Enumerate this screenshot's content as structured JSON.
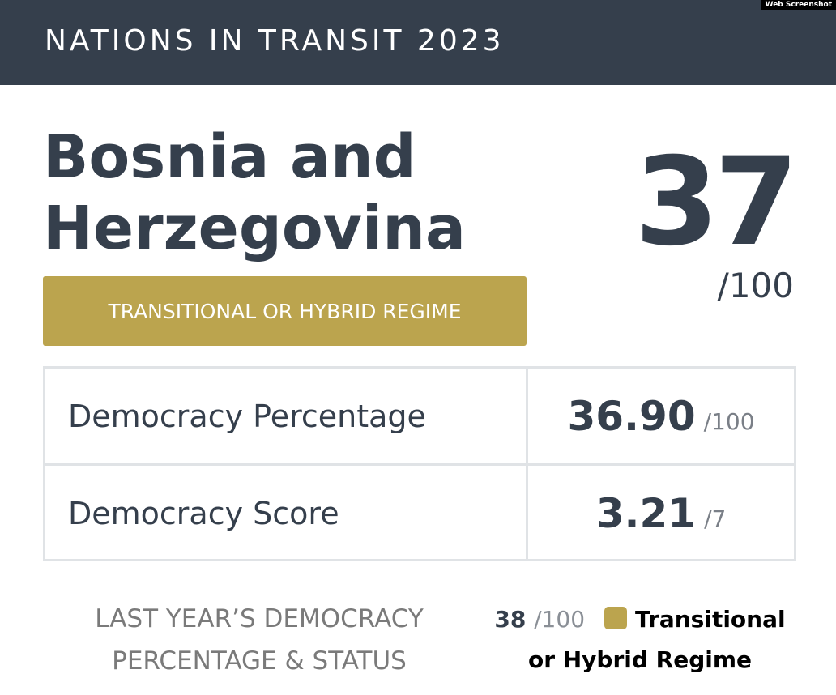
{
  "badge": "Web Screenshot",
  "header": {
    "title": "NATIONS IN TRANSIT 2023"
  },
  "country": {
    "name": "Bosnia and Herzegovina",
    "score": "37",
    "score_max": "/100",
    "status": "TRANSITIONAL OR HYBRID REGIME"
  },
  "table": {
    "rows": [
      [
        "Democracy Percentage",
        "36.90",
        "/100"
      ],
      [
        "Democracy Score",
        "3.21",
        "/7"
      ]
    ]
  },
  "last_year": {
    "label": "LAST YEAR’S DEMOCRACY PERCENTAGE & STATUS",
    "value": "38",
    "value_max": "/100",
    "status": "Transitional or Hybrid Regime"
  }
}
